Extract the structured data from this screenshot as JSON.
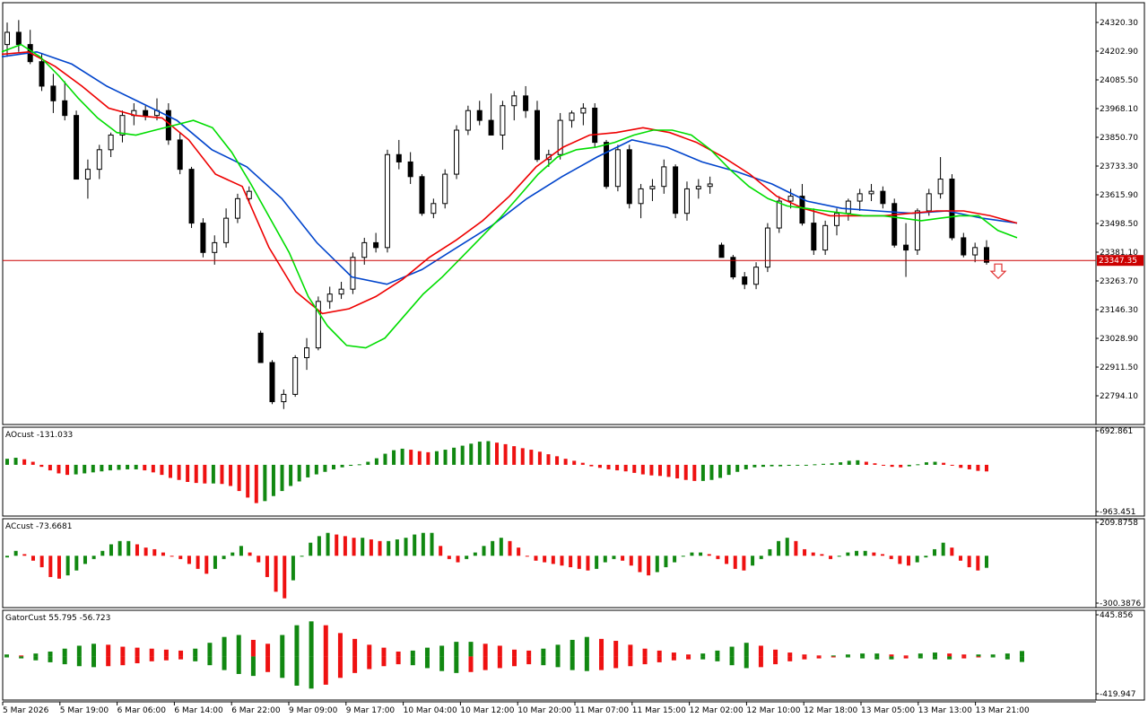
{
  "chart_data": [
    {
      "type": "candlestick",
      "pane": "main",
      "yticks": [
        "24320.30",
        "24202.90",
        "24085.50",
        "23968.10",
        "23850.70",
        "23733.30",
        "23615.90",
        "23498.50",
        "23381.10",
        "23263.70",
        "23146.30",
        "23028.90",
        "22911.50",
        "22794.10"
      ],
      "ylim": [
        22720,
        24370
      ],
      "current_price": 23347.35,
      "current_price_label": "23347.35",
      "colors": {
        "bull": "#ffffff",
        "bear": "#000000",
        "ma_green": "#00dd00",
        "ma_red": "#ee0000",
        "ma_blue": "#0044cc",
        "price_line": "#cc0000"
      },
      "candles": [
        [
          24230,
          24320,
          24180,
          24280
        ],
        [
          24280,
          24330,
          24200,
          24230
        ],
        [
          24230,
          24290,
          24150,
          24160
        ],
        [
          24160,
          24190,
          24040,
          24060
        ],
        [
          24060,
          24110,
          23950,
          24000
        ],
        [
          24000,
          24080,
          23920,
          23940
        ],
        [
          23940,
          23960,
          23680,
          23680
        ],
        [
          23680,
          23760,
          23600,
          23720
        ],
        [
          23720,
          23820,
          23680,
          23800
        ],
        [
          23800,
          23870,
          23770,
          23860
        ],
        [
          23860,
          23960,
          23830,
          23940
        ],
        [
          23940,
          23990,
          23900,
          23960
        ],
        [
          23960,
          23980,
          23920,
          23940
        ],
        [
          23940,
          24010,
          23920,
          23960
        ],
        [
          23960,
          23990,
          23820,
          23840
        ],
        [
          23840,
          23870,
          23700,
          23720
        ],
        [
          23720,
          23730,
          23480,
          23500
        ],
        [
          23500,
          23520,
          23360,
          23380
        ],
        [
          23380,
          23450,
          23330,
          23420
        ],
        [
          23420,
          23560,
          23400,
          23520
        ],
        [
          23520,
          23620,
          23500,
          23600
        ],
        [
          23600,
          23650,
          23580,
          23630
        ],
        [
          23050,
          23060,
          22930,
          22930
        ],
        [
          22930,
          22940,
          22760,
          22770
        ],
        [
          22770,
          22820,
          22740,
          22800
        ],
        [
          22800,
          22960,
          22790,
          22950
        ],
        [
          22950,
          23030,
          22900,
          22990
        ],
        [
          22990,
          23200,
          22980,
          23180
        ],
        [
          23180,
          23240,
          23150,
          23210
        ],
        [
          23210,
          23260,
          23190,
          23230
        ],
        [
          23230,
          23380,
          23210,
          23360
        ],
        [
          23360,
          23440,
          23330,
          23420
        ],
        [
          23420,
          23460,
          23380,
          23400
        ],
        [
          23400,
          23800,
          23380,
          23780
        ],
        [
          23780,
          23840,
          23720,
          23750
        ],
        [
          23750,
          23790,
          23660,
          23690
        ],
        [
          23690,
          23700,
          23530,
          23540
        ],
        [
          23540,
          23600,
          23520,
          23580
        ],
        [
          23580,
          23720,
          23560,
          23700
        ],
        [
          23700,
          23900,
          23680,
          23880
        ],
        [
          23880,
          23980,
          23860,
          23960
        ],
        [
          23960,
          24000,
          23900,
          23920
        ],
        [
          23920,
          24030,
          23860,
          23860
        ],
        [
          23860,
          24000,
          23800,
          23980
        ],
        [
          23980,
          24040,
          23920,
          24020
        ],
        [
          24020,
          24060,
          23930,
          23960
        ],
        [
          23960,
          24000,
          23750,
          23760
        ],
        [
          23760,
          23800,
          23730,
          23780
        ],
        [
          23780,
          23950,
          23760,
          23920
        ],
        [
          23920,
          23960,
          23890,
          23950
        ],
        [
          23950,
          23990,
          23900,
          23970
        ],
        [
          23970,
          23990,
          23810,
          23830
        ],
        [
          23830,
          23840,
          23640,
          23650
        ],
        [
          23650,
          23820,
          23630,
          23800
        ],
        [
          23800,
          23820,
          23560,
          23580
        ],
        [
          23580,
          23660,
          23520,
          23640
        ],
        [
          23640,
          23680,
          23590,
          23650
        ],
        [
          23650,
          23760,
          23620,
          23730
        ],
        [
          23730,
          23740,
          23520,
          23540
        ],
        [
          23540,
          23670,
          23510,
          23640
        ],
        [
          23640,
          23680,
          23600,
          23650
        ],
        [
          23650,
          23690,
          23620,
          23660
        ],
        [
          23410,
          23420,
          23360,
          23360
        ],
        [
          23360,
          23370,
          23270,
          23280
        ],
        [
          23280,
          23300,
          23230,
          23250
        ],
        [
          23250,
          23340,
          23230,
          23320
        ],
        [
          23320,
          23500,
          23300,
          23480
        ],
        [
          23480,
          23610,
          23460,
          23590
        ],
        [
          23590,
          23640,
          23560,
          23610
        ],
        [
          23610,
          23660,
          23490,
          23500
        ],
        [
          23500,
          23560,
          23370,
          23390
        ],
        [
          23390,
          23510,
          23370,
          23490
        ],
        [
          23490,
          23560,
          23450,
          23540
        ],
        [
          23540,
          23600,
          23510,
          23590
        ],
        [
          23590,
          23640,
          23550,
          23620
        ],
        [
          23620,
          23660,
          23590,
          23630
        ],
        [
          23630,
          23650,
          23560,
          23580
        ],
        [
          23580,
          23600,
          23400,
          23410
        ],
        [
          23410,
          23500,
          23280,
          23390
        ],
        [
          23390,
          23560,
          23370,
          23550
        ],
        [
          23550,
          23640,
          23530,
          23620
        ],
        [
          23620,
          23770,
          23600,
          23680
        ],
        [
          23680,
          23700,
          23430,
          23440
        ],
        [
          23440,
          23460,
          23360,
          23370
        ],
        [
          23370,
          23420,
          23340,
          23400
        ],
        [
          23400,
          23430,
          23330,
          23340
        ]
      ],
      "ma_green": [
        24200,
        24230,
        24180,
        24100,
        24010,
        23930,
        23870,
        23860,
        23880,
        23900,
        23920,
        23890,
        23790,
        23660,
        23520,
        23380,
        23200,
        23080,
        23000,
        22990,
        23030,
        23120,
        23210,
        23280,
        23360,
        23440,
        23520,
        23610,
        23700,
        23770,
        23800,
        23810,
        23830,
        23860,
        23880,
        23880,
        23860,
        23800,
        23720,
        23650,
        23600,
        23570,
        23560,
        23550,
        23540,
        23530,
        23530,
        23520,
        23510,
        23520,
        23530,
        23530,
        23470,
        23440
      ],
      "ma_red": [
        24190,
        24200,
        24140,
        24060,
        23970,
        23940,
        23930,
        23840,
        23700,
        23650,
        23400,
        23220,
        23130,
        23150,
        23200,
        23270,
        23360,
        23430,
        23510,
        23610,
        23730,
        23810,
        23860,
        23870,
        23890,
        23870,
        23830,
        23770,
        23700,
        23610,
        23560,
        23530,
        23530,
        23530,
        23540,
        23550,
        23550,
        23530,
        23500
      ],
      "ma_blue": [
        24180,
        24200,
        24150,
        24060,
        23990,
        23920,
        23800,
        23730,
        23600,
        23420,
        23280,
        23250,
        23310,
        23400,
        23490,
        23600,
        23690,
        23770,
        23840,
        23810,
        23750,
        23710,
        23660,
        23590,
        23560,
        23550,
        23540,
        23550,
        23520,
        23500
      ]
    },
    {
      "type": "bar",
      "pane": "AOcust",
      "label": "AOcust -131.033",
      "yticks": [
        "692.861",
        "-963.451"
      ],
      "ylim": [
        -963.451,
        692.861
      ],
      "values": [
        120,
        140,
        110,
        60,
        -40,
        -110,
        -170,
        -200,
        -190,
        -170,
        -150,
        -130,
        -110,
        -100,
        -90,
        -90,
        -110,
        -150,
        -200,
        -260,
        -300,
        -340,
        -360,
        -370,
        -370,
        -380,
        -420,
        -520,
        -650,
        -760,
        -720,
        -620,
        -520,
        -420,
        -330,
        -250,
        -190,
        -140,
        -90,
        -50,
        -20,
        10,
        60,
        130,
        220,
        290,
        320,
        300,
        270,
        250,
        270,
        300,
        340,
        380,
        420,
        460,
        470,
        440,
        410,
        370,
        330,
        300,
        260,
        210,
        170,
        120,
        80,
        40,
        -30,
        -60,
        -90,
        -110,
        -130,
        -160,
        -190,
        -210,
        -220,
        -240,
        -270,
        -300,
        -320,
        -320,
        -300,
        -260,
        -200,
        -140,
        -90,
        -50,
        -40,
        -30,
        -30,
        -20,
        -10,
        0,
        10,
        20,
        30,
        50,
        80,
        90,
        60,
        30,
        -10,
        -40,
        -50,
        -30,
        10,
        50,
        60,
        40,
        -10,
        -60,
        -90,
        -120,
        -131.033
      ]
    },
    {
      "type": "bar",
      "pane": "ACcust",
      "label": "ACcust -73.6681",
      "yticks": [
        "209.8758",
        "-300.3876"
      ],
      "ylim": [
        -300.3876,
        209.8758
      ],
      "values": [
        -10,
        30,
        10,
        -30,
        -70,
        -130,
        -140,
        -120,
        -90,
        -50,
        -20,
        30,
        70,
        90,
        90,
        70,
        50,
        40,
        20,
        0,
        -20,
        -50,
        -80,
        -110,
        -80,
        -20,
        20,
        60,
        20,
        -40,
        -130,
        -220,
        -260,
        -150,
        0,
        80,
        120,
        140,
        130,
        120,
        110,
        110,
        100,
        90,
        90,
        100,
        110,
        130,
        140,
        140,
        60,
        -20,
        -40,
        -20,
        20,
        60,
        90,
        110,
        90,
        50,
        0,
        -30,
        -40,
        -50,
        -60,
        -70,
        -80,
        -90,
        -80,
        -40,
        -20,
        -30,
        -60,
        -100,
        -120,
        -100,
        -70,
        -40,
        0,
        20,
        20,
        10,
        -20,
        -50,
        -80,
        -90,
        -60,
        -20,
        40,
        90,
        110,
        90,
        40,
        20,
        10,
        -20,
        0,
        20,
        30,
        30,
        20,
        10,
        -20,
        -50,
        -60,
        -40,
        -10,
        40,
        80,
        50,
        -30,
        -70,
        -90,
        -73.6681
      ]
    },
    {
      "type": "bar",
      "pane": "GatorCust",
      "label": "GatorCust 55.795 -56.723",
      "yticks": [
        "445.856",
        "-419.947"
      ],
      "ylim": [
        -419.947,
        445.856
      ],
      "up_values": [
        20,
        10,
        30,
        50,
        80,
        110,
        130,
        120,
        100,
        90,
        80,
        70,
        60,
        80,
        140,
        200,
        220,
        170,
        130,
        220,
        320,
        360,
        320,
        240,
        180,
        120,
        90,
        50,
        60,
        90,
        110,
        150,
        150,
        130,
        110,
        70,
        60,
        80,
        120,
        170,
        200,
        180,
        160,
        120,
        80,
        60,
        40,
        20,
        30,
        60,
        100,
        140,
        110,
        70,
        40,
        20,
        10,
        10,
        20,
        30,
        30,
        20,
        10,
        30,
        40,
        30,
        20,
        20,
        20,
        30,
        55.795
      ],
      "down_values": [
        -10,
        -20,
        -40,
        -60,
        -80,
        -100,
        -110,
        -100,
        -90,
        -70,
        -50,
        -40,
        -30,
        -50,
        -90,
        -140,
        -180,
        -200,
        -160,
        -220,
        -300,
        -330,
        -290,
        -220,
        -170,
        -130,
        -100,
        -80,
        -90,
        -120,
        -150,
        -170,
        -160,
        -140,
        -120,
        -100,
        -80,
        -90,
        -110,
        -140,
        -150,
        -140,
        -120,
        -100,
        -80,
        -60,
        -40,
        -30,
        -30,
        -50,
        -90,
        -120,
        -110,
        -80,
        -50,
        -30,
        -20,
        -10,
        -10,
        -20,
        -30,
        -30,
        -20,
        -20,
        -30,
        -30,
        -20,
        -10,
        -10,
        -30,
        -56.723
      ]
    }
  ],
  "x_labels": [
    "5 Mar 2026",
    "5 Mar 19:00",
    "6 Mar 06:00",
    "6 Mar 14:00",
    "6 Mar 22:00",
    "9 Mar 09:00",
    "9 Mar 17:00",
    "10 Mar 04:00",
    "10 Mar 12:00",
    "10 Mar 20:00",
    "11 Mar 07:00",
    "11 Mar 15:00",
    "12 Mar 02:00",
    "12 Mar 10:00",
    "12 Mar 18:00",
    "13 Mar 05:00",
    "13 Mar 13:00",
    "13 Mar 21:00"
  ],
  "panes": {
    "ao_label": "AOcust -131.033",
    "ac_label": "ACcust -73.6681",
    "gator_label": "GatorCust 55.795 -56.723"
  }
}
